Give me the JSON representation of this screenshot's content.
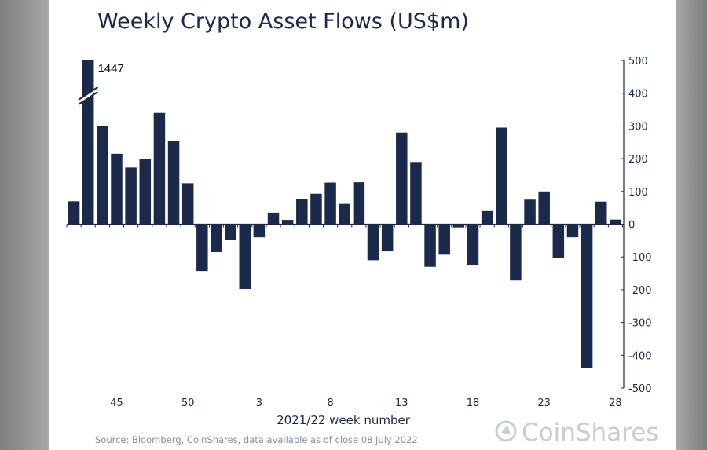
{
  "chart_data": {
    "type": "bar",
    "title": "Weekly Crypto Asset Flows (US$m)",
    "xlabel": "2021/22 week number",
    "ylabel": "",
    "ylim": [
      -500,
      500
    ],
    "yticks": [
      500,
      400,
      300,
      200,
      100,
      0,
      -100,
      -200,
      -300,
      -400,
      -500
    ],
    "xtick_labels": [
      "45",
      "50",
      "3",
      "8",
      "13",
      "18",
      "23",
      "28"
    ],
    "categories": [
      "42",
      "43",
      "44",
      "45",
      "46",
      "47",
      "48",
      "49",
      "50",
      "51",
      "52",
      "1",
      "2",
      "3",
      "4",
      "5",
      "6",
      "7",
      "8",
      "9",
      "10",
      "11",
      "12",
      "13",
      "14",
      "15",
      "16",
      "17",
      "18",
      "19",
      "20",
      "21",
      "22",
      "23",
      "24",
      "25",
      "26",
      "27",
      "28"
    ],
    "values": [
      70,
      1447,
      300,
      215,
      173,
      198,
      340,
      255,
      125,
      -143,
      -85,
      -48,
      -198,
      -40,
      35,
      13,
      77,
      93,
      127,
      62,
      128,
      -110,
      -83,
      280,
      190,
      -130,
      -93,
      -10,
      -126,
      40,
      295,
      -172,
      75,
      100,
      -102,
      -40,
      -438,
      69,
      14
    ],
    "axis_break": {
      "category": "43",
      "label": "1447"
    },
    "grid": false
  },
  "source": "Source: Bloomberg, CoinShares, data available as of close 08 July 2022",
  "logo_text": "CoinShares",
  "colors": {
    "bar": "#1b2a4a",
    "background": "#ffffff",
    "logo": "#c9ccd1"
  }
}
